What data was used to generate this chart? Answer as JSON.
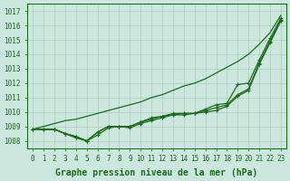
{
  "title": "Graphe pression niveau de la mer (hPa)",
  "x": [
    0,
    1,
    2,
    3,
    4,
    5,
    6,
    7,
    8,
    9,
    10,
    11,
    12,
    13,
    14,
    15,
    16,
    17,
    18,
    19,
    20,
    21,
    22,
    23
  ],
  "series_no_marker": [
    [
      1008.8,
      1009.0,
      1009.2,
      1009.4,
      1009.5,
      1009.7,
      1009.9,
      1010.1,
      1010.3,
      1010.5,
      1010.7,
      1011.0,
      1011.2,
      1011.5,
      1011.8,
      1012.0,
      1012.3,
      1012.7,
      1013.1,
      1013.5,
      1014.0,
      1014.7,
      1015.5,
      1016.7
    ]
  ],
  "series_with_marker": [
    [
      1008.8,
      1008.8,
      1008.8,
      1008.5,
      1008.3,
      1008.0,
      1008.6,
      1009.0,
      1009.0,
      1009.0,
      1009.3,
      1009.6,
      1009.7,
      1009.9,
      1009.9,
      1009.9,
      1010.2,
      1010.5,
      1010.6,
      1011.9,
      1012.0,
      1013.6,
      1015.1,
      1016.5
    ],
    [
      1008.8,
      1008.8,
      1008.8,
      1008.5,
      1008.3,
      1008.0,
      1008.6,
      1009.0,
      1009.0,
      1009.0,
      1009.3,
      1009.5,
      1009.7,
      1009.8,
      1009.9,
      1009.9,
      1010.1,
      1010.3,
      1010.5,
      1011.2,
      1011.6,
      1013.4,
      1014.9,
      1016.4
    ],
    [
      1008.8,
      1008.8,
      1008.8,
      1008.5,
      1008.2,
      1008.0,
      1008.4,
      1008.9,
      1009.0,
      1008.9,
      1009.2,
      1009.4,
      1009.6,
      1009.8,
      1009.8,
      1009.9,
      1010.0,
      1010.1,
      1010.4,
      1011.1,
      1011.5,
      1013.3,
      1014.8,
      1016.3
    ]
  ],
  "line_color": "#1a6b1a",
  "bg_color": "#cce8de",
  "grid_color": "#aaccbb",
  "ylim": [
    1007.5,
    1017.5
  ],
  "ytick_min": 1008,
  "ytick_max": 1017,
  "xlim": [
    -0.5,
    23.5
  ],
  "tick_fontsize": 5.5,
  "title_fontsize": 7,
  "marker_size": 2.5,
  "linewidth": 0.9
}
